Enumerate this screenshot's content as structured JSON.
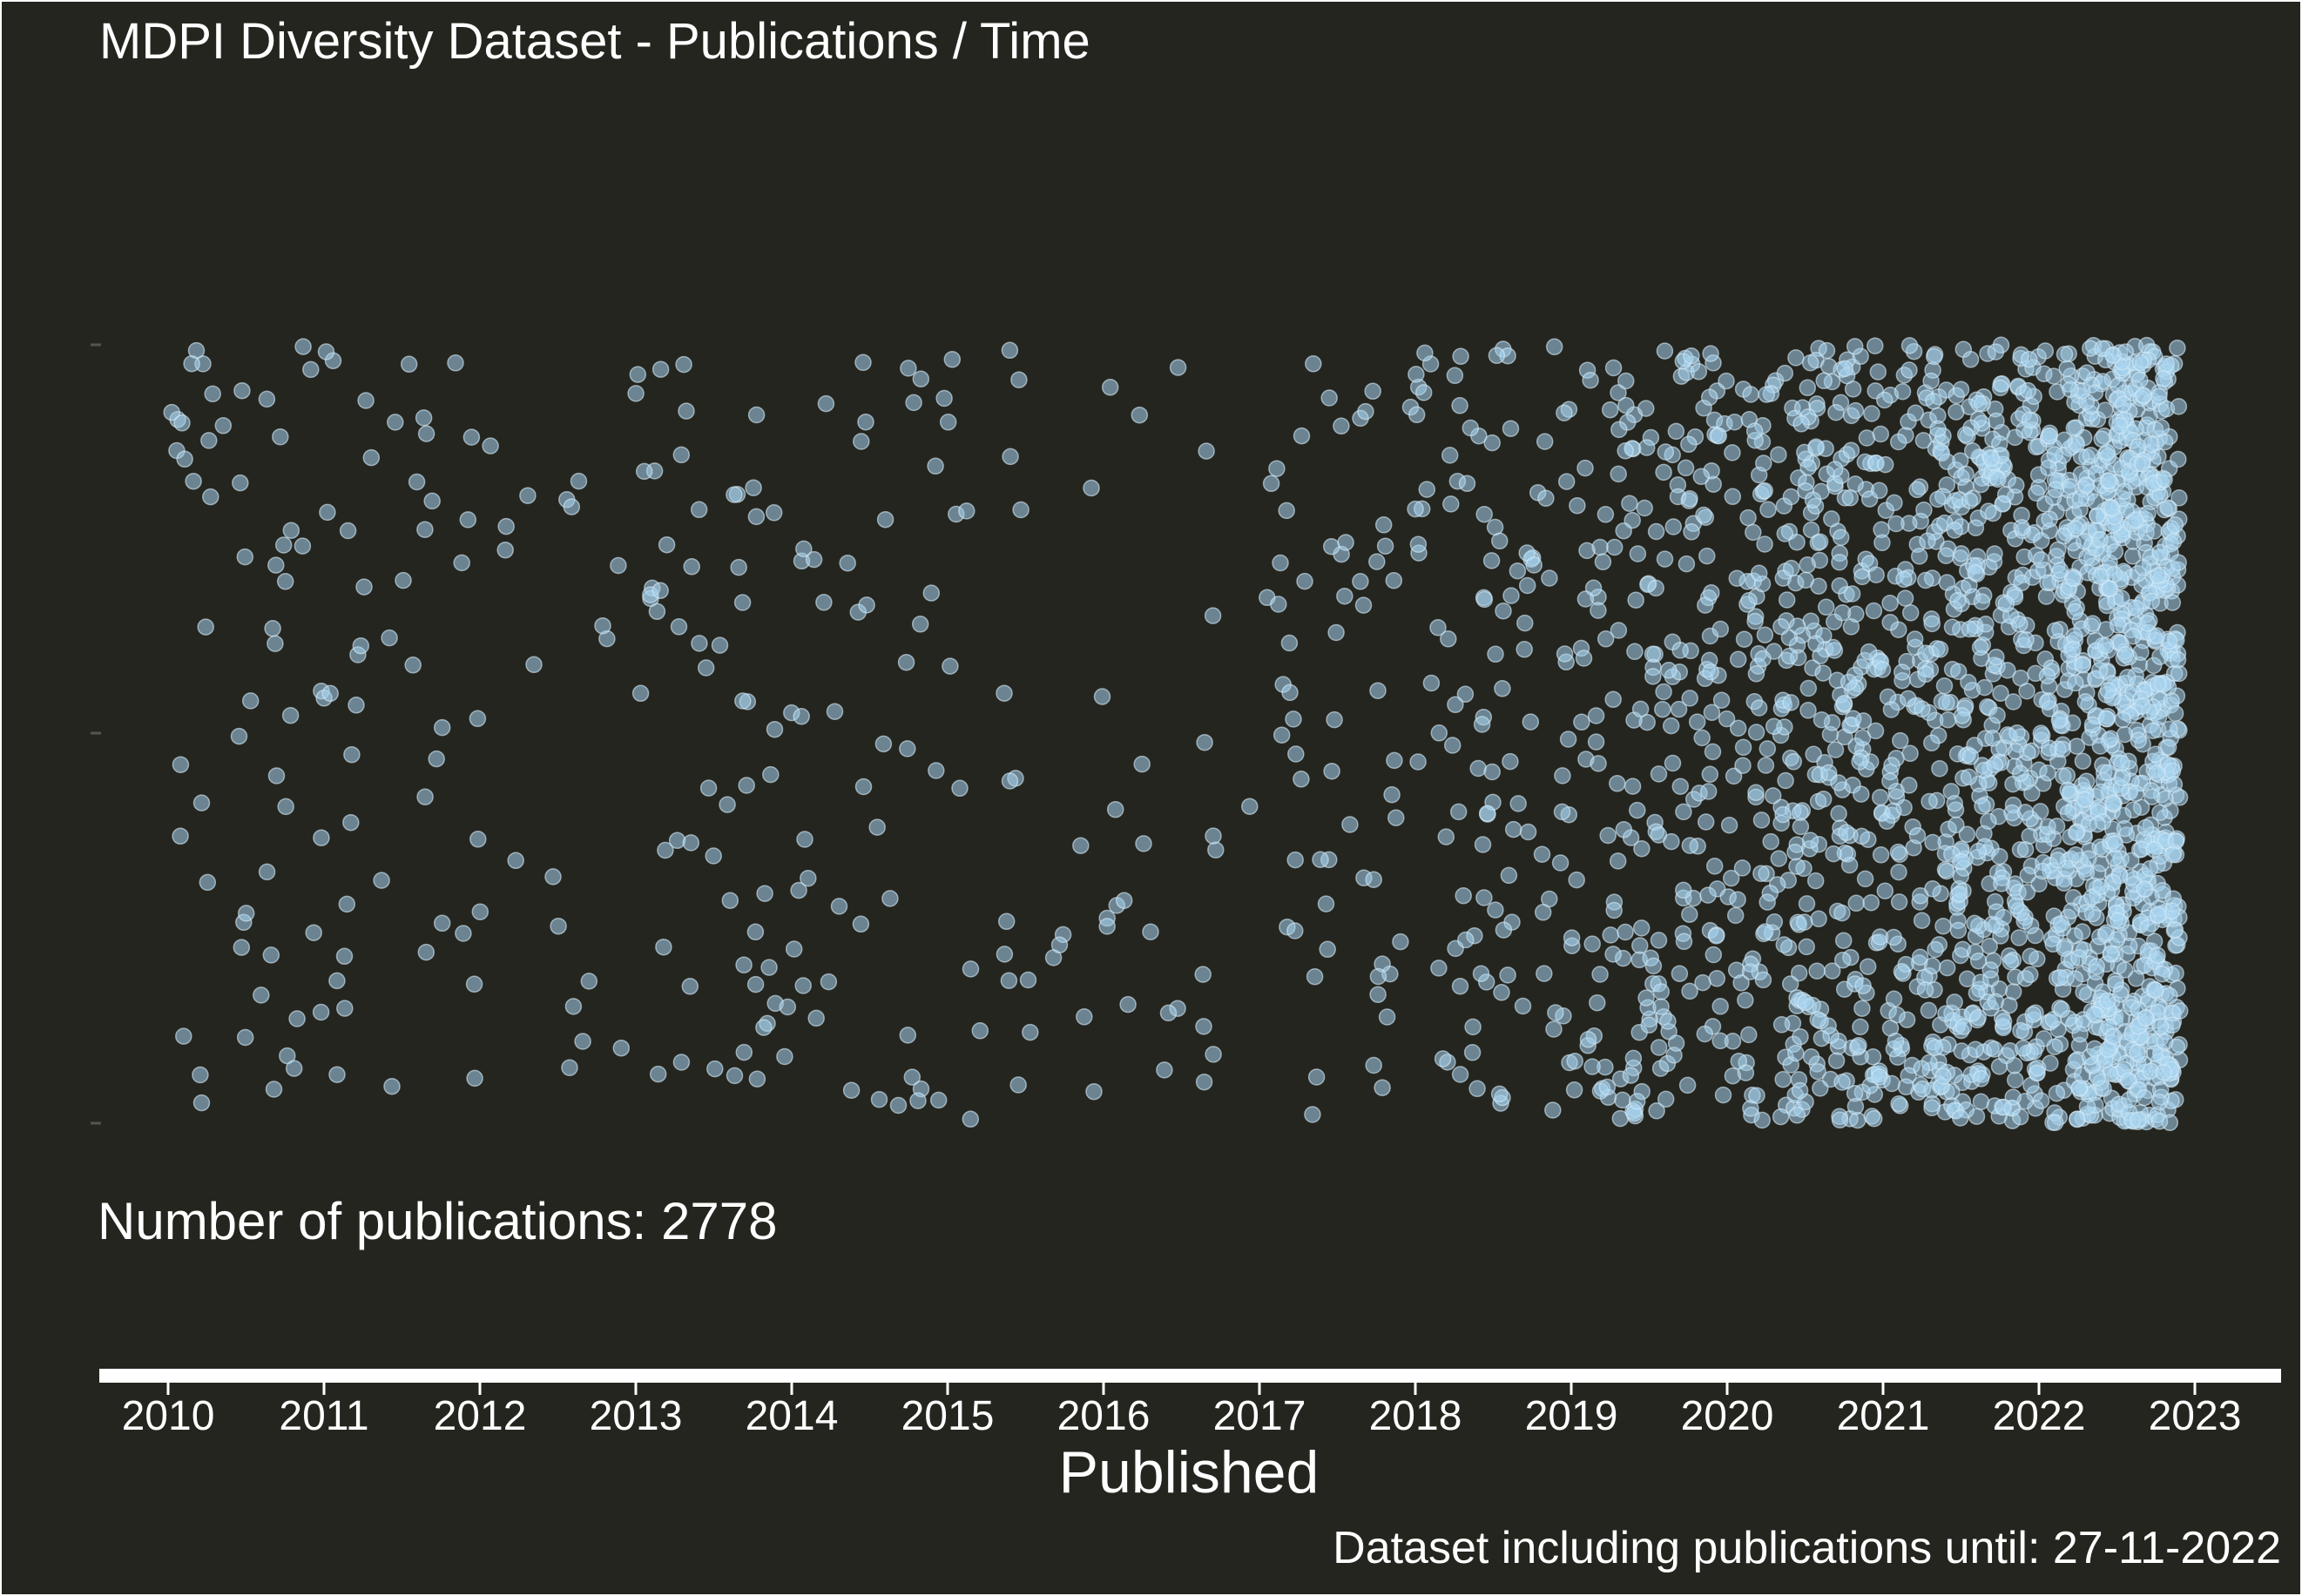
{
  "chart_data": {
    "type": "scatter",
    "title": "MDPI Diversity Dataset - Publications / Time",
    "annotation": "Number of publications: 2778",
    "caption": "Dataset including publications until: 27-11-2022",
    "xlabel": "Published",
    "ylabel": "",
    "x_ticks": [
      "2010",
      "2011",
      "2012",
      "2013",
      "2014",
      "2015",
      "2016",
      "2017",
      "2018",
      "2019",
      "2020",
      "2021",
      "2022",
      "2023"
    ],
    "xlim": [
      "2009-07-01",
      "2023-07-01"
    ],
    "y_jitter": true,
    "grid": false,
    "legend": "none",
    "n_points": 2778,
    "last_date": "2022-11-27",
    "yearly_counts": {
      "2010": 55,
      "2011": 45,
      "2012": 20,
      "2013": 60,
      "2014": 45,
      "2015": 30,
      "2016": 25,
      "2017": 60,
      "2018": 115,
      "2019": 230,
      "2020": 400,
      "2021": 580,
      "2022": 1113
    },
    "colors": {
      "background": "#25251f",
      "points": "#a8d4ee",
      "axis": "#ffffff",
      "text": "#ffffff"
    }
  }
}
